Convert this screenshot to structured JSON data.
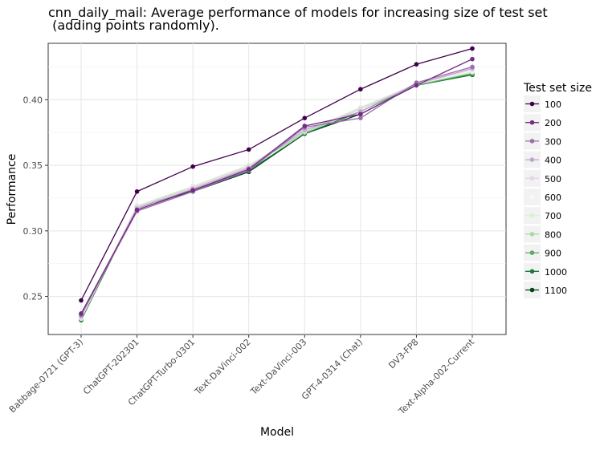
{
  "chart_data": {
    "type": "line",
    "title_line1": "cnn_daily_mail: Average performance of models for increasing size of test set",
    "title_line2": " (adding points randomly).",
    "xlabel": "Model",
    "ylabel": "Performance",
    "categories": [
      "Babbage-0721 (GPT-3)",
      "ChatGPT-202301",
      "ChatGPT-Turbo-0301",
      "Text-DaVinci-002",
      "Text-DaVinci-003",
      "GPT-4-0314 (Chat)",
      "DV3-FP8",
      "Text-Alpha-002-Current"
    ],
    "ylim": [
      0.221,
      0.443
    ],
    "yticks": [
      0.25,
      0.3,
      0.35,
      0.4
    ],
    "ytick_labels": [
      "0.25",
      "0.30",
      "0.35",
      "0.40"
    ],
    "grid": true,
    "legend": {
      "title": "Test set size",
      "placement": "right"
    },
    "series": [
      {
        "name": "100",
        "color": "#40004b",
        "values": [
          0.247,
          0.33,
          0.349,
          0.362,
          0.386,
          0.408,
          0.427,
          0.439
        ]
      },
      {
        "name": "200",
        "color": "#762a83",
        "values": [
          0.237,
          0.316,
          0.331,
          0.347,
          0.38,
          0.389,
          0.411,
          0.431
        ]
      },
      {
        "name": "300",
        "color": "#9970ab",
        "values": [
          0.236,
          0.315,
          0.33,
          0.346,
          0.379,
          0.386,
          0.413,
          0.425
        ]
      },
      {
        "name": "400",
        "color": "#c2a5cf",
        "values": [
          0.235,
          0.317,
          0.332,
          0.348,
          0.377,
          0.391,
          0.412,
          0.424
        ]
      },
      {
        "name": "500",
        "color": "#e7d4e8",
        "values": [
          0.234,
          0.318,
          0.333,
          0.349,
          0.376,
          0.393,
          0.412,
          0.423
        ]
      },
      {
        "name": "600",
        "color": "#f7f7f7",
        "values": [
          0.234,
          0.318,
          0.333,
          0.349,
          0.376,
          0.393,
          0.412,
          0.422
        ]
      },
      {
        "name": "700",
        "color": "#d9f0d3",
        "values": [
          0.233,
          0.319,
          0.334,
          0.35,
          0.376,
          0.394,
          0.412,
          0.421
        ]
      },
      {
        "name": "800",
        "color": "#a6dba0",
        "values": [
          0.233,
          0.319,
          0.334,
          0.35,
          0.375,
          0.394,
          0.412,
          0.421
        ]
      },
      {
        "name": "900",
        "color": "#5aae61",
        "values": [
          0.233,
          0.319,
          0.333,
          0.349,
          0.375,
          0.393,
          0.411,
          0.42
        ]
      },
      {
        "name": "1000",
        "color": "#1b7837",
        "values": [
          0.232,
          0.318,
          0.331,
          0.346,
          0.374,
          0.391,
          0.411,
          0.419
        ]
      },
      {
        "name": "1100",
        "color": "#00441b",
        "values": [
          0.232,
          0.318,
          0.33,
          0.345,
          0.374,
          0.389,
          0.411,
          0.419
        ]
      }
    ]
  }
}
